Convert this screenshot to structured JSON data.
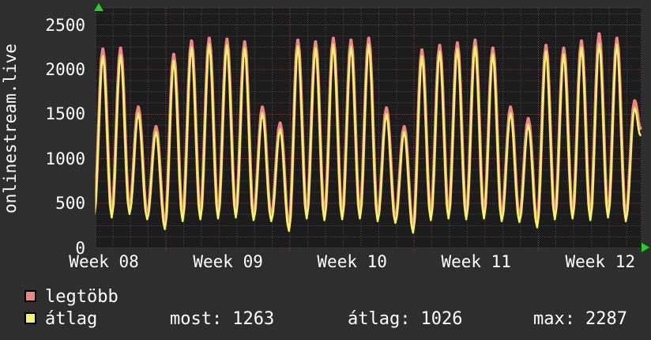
{
  "window": {
    "background": "#2e2e2e",
    "text_color": "#ffffff"
  },
  "chart_data": {
    "type": "line",
    "title": "onlinestream.live",
    "x_tick_labels": [
      "Week 08",
      "Week 09",
      "Week 10",
      "Week 11",
      "Week 12"
    ],
    "y_tick_labels": [
      "0",
      "500",
      "1000",
      "1500",
      "2000",
      "2500"
    ],
    "y_tick_values": [
      0,
      500,
      1000,
      1500,
      2000,
      2500
    ],
    "y_major_step": 500,
    "y_minor_step": 125,
    "ylim": [
      0,
      2690
    ],
    "days_shown": 31,
    "days_per_week": 7,
    "plot_bg": "#1c1c1c",
    "grid_minor_color": "#4f4f4f",
    "grid_major_color": "#a84444",
    "axis_arrow_color": "#1fd31f",
    "legend_position": "bottom-left",
    "series": [
      {
        "name": "legtöbb",
        "color": "#f28484",
        "line_width": 4,
        "lead_in_value": 390,
        "end_value": 1340,
        "day_peaks": [
          2230,
          2240,
          1580,
          1360,
          2170,
          2320,
          2350,
          2340,
          2310,
          1580,
          1400,
          2330,
          2310,
          2350,
          2330,
          2350,
          1570,
          1360,
          2220,
          2270,
          2300,
          2330,
          2240,
          1580,
          1450,
          2270,
          2240,
          2320,
          2400,
          2350,
          1650
        ],
        "day_troughs": [
          380,
          420,
          360,
          250,
          340,
          360,
          370,
          380,
          350,
          340,
          230,
          370,
          350,
          360,
          370,
          340,
          320,
          210,
          350,
          370,
          360,
          370,
          340,
          330,
          270,
          360,
          370,
          350,
          380,
          340
        ]
      },
      {
        "name": "átlag",
        "color": "#f4f464",
        "line_width": 2.5,
        "lead_in_value": 350,
        "end_value": 1263,
        "day_peaks": [
          2150,
          2160,
          1510,
          1300,
          2100,
          2250,
          2280,
          2270,
          2240,
          1510,
          1330,
          2260,
          2240,
          2280,
          2260,
          2280,
          1500,
          1300,
          2150,
          2200,
          2230,
          2260,
          2170,
          1510,
          1380,
          2200,
          2170,
          2250,
          2287,
          2280,
          1570
        ],
        "day_troughs": [
          340,
          380,
          320,
          210,
          300,
          320,
          330,
          340,
          310,
          300,
          190,
          330,
          310,
          320,
          330,
          300,
          280,
          170,
          310,
          330,
          320,
          330,
          300,
          290,
          230,
          320,
          330,
          310,
          340,
          300
        ]
      }
    ]
  },
  "stats": {
    "most_label": "most:",
    "most_value": "1263",
    "avg_label": "átlag:",
    "avg_value": "1026",
    "max_label": "max:",
    "max_value": "2287"
  }
}
